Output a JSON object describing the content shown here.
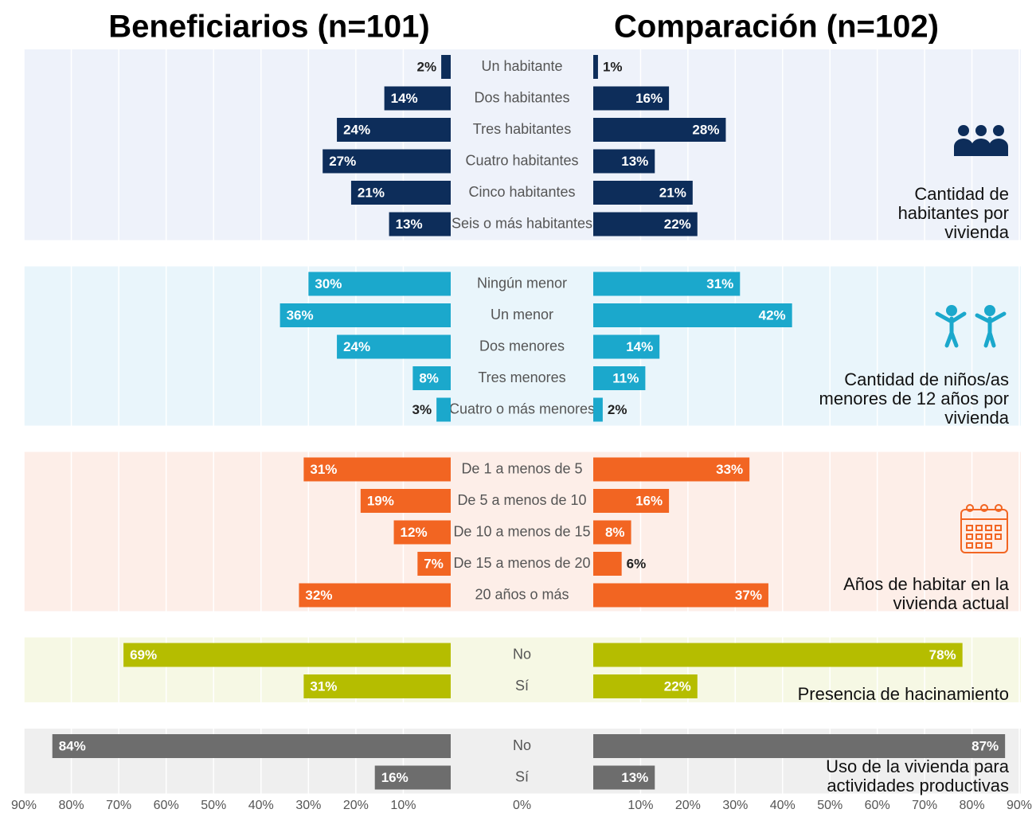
{
  "chart_data": {
    "type": "butterfly",
    "series_names": [
      "Beneficiarios (n=101)",
      "Comparación (n=102)"
    ],
    "xlim": [
      0,
      90
    ],
    "xticks": [
      {
        "value": 0,
        "label": "0%"
      },
      {
        "value": 10,
        "label": "10%"
      },
      {
        "value": 20,
        "label": "20%"
      },
      {
        "value": 30,
        "label": "30%"
      },
      {
        "value": 40,
        "label": "40%"
      },
      {
        "value": 50,
        "label": "50%"
      },
      {
        "value": 60,
        "label": "60%"
      },
      {
        "value": 70,
        "label": "70%"
      },
      {
        "value": 80,
        "label": "80%"
      },
      {
        "value": 90,
        "label": "90%"
      }
    ],
    "groups": [
      {
        "label": "Cantidad de habitantes por vivienda",
        "color": "#0d2d5a",
        "background": "#eef2fa",
        "categories": [
          "Un habitante",
          "Dos habitantes",
          "Tres habitantes",
          "Cuatro habitantes",
          "Cinco habitantes",
          "Seis o más habitantes"
        ],
        "series": [
          {
            "values": [
              2,
              14,
              24,
              27,
              21,
              13
            ],
            "value_labels": [
              "2%",
              "14%",
              "24%",
              "27%",
              "21%",
              "13%"
            ]
          },
          {
            "values": [
              1,
              16,
              28,
              13,
              21,
              22
            ],
            "value_labels": [
              "1%",
              "16%",
              "28%",
              "13%",
              "21%",
              "22%"
            ]
          }
        ]
      },
      {
        "label": "Cantidad de niños/as menores de 12 años por vivienda",
        "color": "#1ba8cc",
        "background": "#e9f5fb",
        "categories": [
          "Ningún menor",
          "Un menor",
          "Dos menores",
          "Tres menores",
          "Cuatro o más menores"
        ],
        "series": [
          {
            "values": [
              30,
              36,
              24,
              8,
              3
            ],
            "value_labels": [
              "30%",
              "36%",
              "24%",
              "8%",
              "3%"
            ]
          },
          {
            "values": [
              31,
              42,
              14,
              11,
              2
            ],
            "value_labels": [
              "31%",
              "42%",
              "14%",
              "11%",
              "2%"
            ]
          }
        ]
      },
      {
        "label": "Años de habitar en la vivienda actual",
        "color": "#f26522",
        "background": "#fdeee8",
        "categories": [
          "De 1 a menos de 5",
          "De 5 a menos de 10",
          "De 10 a menos de 15",
          "De 15 a menos de 20",
          "20 años o más"
        ],
        "series": [
          {
            "values": [
              31,
              19,
              12,
              7,
              32
            ],
            "value_labels": [
              "31%",
              "19%",
              "12%",
              "7%",
              "32%"
            ]
          },
          {
            "values": [
              33,
              16,
              8,
              6,
              37
            ],
            "value_labels": [
              "33%",
              "16%",
              "8%",
              "6%",
              "37%"
            ]
          }
        ]
      },
      {
        "label": "Presencia de hacinamiento",
        "color": "#b5bd00",
        "background": "#f6f8e4",
        "categories": [
          "No",
          "Sí"
        ],
        "series": [
          {
            "values": [
              69,
              31
            ],
            "value_labels": [
              "69%",
              "31%"
            ]
          },
          {
            "values": [
              78,
              22
            ],
            "value_labels": [
              "78%",
              "22%"
            ]
          }
        ]
      },
      {
        "label": "Uso de la vivienda para actividades productivas",
        "color": "#6d6d6d",
        "background": "#efefef",
        "categories": [
          "No",
          "Sí"
        ],
        "series": [
          {
            "values": [
              84,
              16
            ],
            "value_labels": [
              "84%",
              "16%"
            ]
          },
          {
            "values": [
              87,
              13
            ],
            "value_labels": [
              "87%",
              "13%"
            ]
          }
        ]
      }
    ]
  }
}
